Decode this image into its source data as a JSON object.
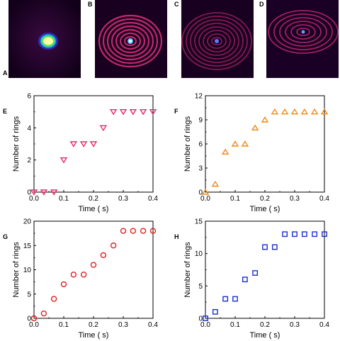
{
  "image_panels": [
    {
      "letter": "A",
      "pattern": "single-central-bright-spot"
    },
    {
      "letter": "B",
      "pattern": "concentric-rings-bright-center"
    },
    {
      "letter": "C",
      "pattern": "concentric-rings-dim"
    },
    {
      "letter": "D",
      "pattern": "off-center-ring-arcs"
    }
  ],
  "chart_data": [
    {
      "letter": "E",
      "type": "scatter",
      "xlabel": "Time  ( s)",
      "ylabel": "Number of rings",
      "xlim": [
        0.0,
        0.4
      ],
      "ylim": [
        0,
        6
      ],
      "xticks": [
        "0.0",
        "0.1",
        "0.2",
        "0.3",
        "0.4"
      ],
      "yticks": [
        "0",
        "2",
        "4",
        "6"
      ],
      "marker": "triangle-down",
      "color": "#e0306a",
      "x": [
        0.0,
        0.033,
        0.067,
        0.1,
        0.133,
        0.167,
        0.2,
        0.233,
        0.267,
        0.3,
        0.333,
        0.367,
        0.4
      ],
      "y": [
        0,
        0,
        0,
        2,
        3,
        3,
        3,
        4,
        5,
        5,
        5,
        5,
        5
      ]
    },
    {
      "letter": "F",
      "type": "scatter",
      "xlabel": "Time  ( s)",
      "ylabel": "Number of rings",
      "xlim": [
        0.0,
        0.4
      ],
      "ylim": [
        0,
        12
      ],
      "xticks": [
        "0.0",
        "0.1",
        "0.2",
        "0.3",
        "0.4"
      ],
      "yticks": [
        "0",
        "3",
        "6",
        "9",
        "12"
      ],
      "marker": "triangle-up",
      "color": "#f08a1a",
      "x": [
        0.0,
        0.033,
        0.067,
        0.1,
        0.133,
        0.167,
        0.2,
        0.233,
        0.267,
        0.3,
        0.333,
        0.367,
        0.4
      ],
      "y": [
        0,
        1,
        5,
        6,
        6,
        8,
        9,
        10,
        10,
        10,
        10,
        10,
        10
      ]
    },
    {
      "letter": "G",
      "type": "scatter",
      "xlabel": "Time  ( s)",
      "ylabel": "Number of rings",
      "xlim": [
        0.0,
        0.4
      ],
      "ylim": [
        0,
        20
      ],
      "xticks": [
        "0.0",
        "0.1",
        "0.2",
        "0.3",
        "0.4"
      ],
      "yticks": [
        "0",
        "5",
        "10",
        "15",
        "20"
      ],
      "marker": "circle",
      "color": "#e02020",
      "x": [
        0.0,
        0.033,
        0.067,
        0.1,
        0.133,
        0.167,
        0.2,
        0.233,
        0.267,
        0.3,
        0.333,
        0.367,
        0.4
      ],
      "y": [
        0,
        1,
        4,
        7,
        9,
        9,
        11,
        13,
        15,
        18,
        18,
        18,
        18
      ]
    },
    {
      "letter": "H",
      "type": "scatter",
      "xlabel": "Time  ( s)",
      "ylabel": "Number of rings",
      "xlim": [
        0.0,
        0.4
      ],
      "ylim": [
        0,
        15
      ],
      "xticks": [
        "0.0",
        "0.1",
        "0.2",
        "0.3",
        "0.4"
      ],
      "yticks": [
        "0",
        "5",
        "10",
        "15"
      ],
      "marker": "square",
      "color": "#1a2fd0",
      "x": [
        0.0,
        0.033,
        0.067,
        0.1,
        0.133,
        0.167,
        0.2,
        0.233,
        0.267,
        0.3,
        0.333,
        0.367,
        0.4
      ],
      "y": [
        0,
        1,
        3,
        3,
        6,
        7,
        11,
        11,
        13,
        13,
        13,
        13,
        13
      ]
    }
  ]
}
